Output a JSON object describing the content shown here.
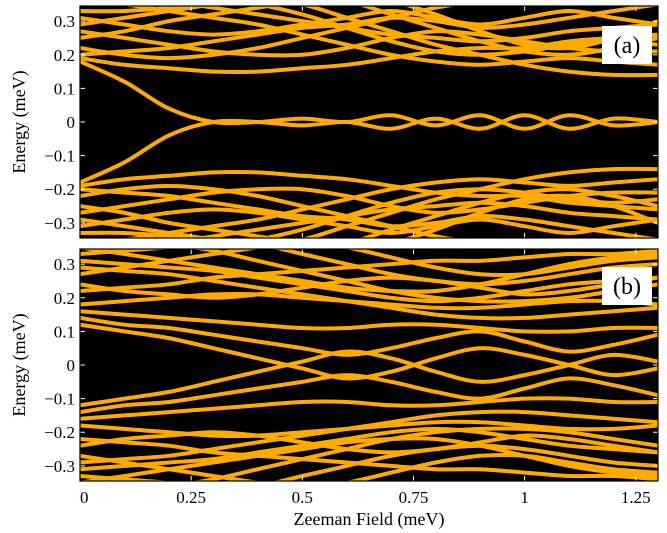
{
  "chart_data": [
    {
      "id": "a",
      "type": "line",
      "panel_label": "(a)",
      "xlabel": "",
      "ylabel": "Energy (meV)",
      "xlim": [
        0,
        1.3
      ],
      "ylim": [
        -0.345,
        0.345
      ],
      "yticks": [
        -0.3,
        -0.2,
        -0.1,
        0,
        0.1,
        0.2,
        0.3
      ],
      "ytick_labels": [
        "−0.3",
        "−0.2",
        "−0.1",
        "0",
        "0.1",
        "0.2",
        "0.3"
      ],
      "background": "#000000",
      "line_color": "#FFAA00",
      "x": [
        0,
        0.1,
        0.2,
        0.3,
        0.4,
        0.5,
        0.6,
        0.7,
        0.8,
        0.9,
        1.0,
        1.1,
        1.2,
        1.3
      ],
      "series": [
        {
          "values": [
            0.18,
            0.12,
            0.04,
            0.0,
            0.0,
            0.01,
            0.0,
            0.02,
            -0.01,
            0.02,
            -0.02,
            0.02,
            -0.01,
            0.0
          ]
        },
        {
          "values": [
            -0.18,
            -0.12,
            -0.04,
            0.0,
            0.0,
            -0.01,
            0.0,
            -0.02,
            0.01,
            -0.02,
            0.02,
            -0.02,
            0.01,
            0.0
          ]
        },
        {
          "values": [
            0.19,
            0.17,
            0.16,
            0.15,
            0.15,
            0.16,
            0.17,
            0.19,
            0.21,
            0.22,
            0.22,
            0.24,
            0.25,
            0.26
          ]
        },
        {
          "values": [
            0.2,
            0.21,
            0.22,
            0.24,
            0.26,
            0.28,
            0.29,
            0.31,
            0.3,
            0.28,
            0.29,
            0.31,
            0.33,
            0.35
          ]
        },
        {
          "values": [
            0.22,
            0.2,
            0.19,
            0.2,
            0.22,
            0.25,
            0.28,
            0.31,
            0.34,
            0.36,
            0.37,
            0.37,
            0.36,
            0.36
          ]
        },
        {
          "values": [
            0.25,
            0.27,
            0.3,
            0.32,
            0.34,
            0.36,
            0.37,
            0.37,
            0.37,
            0.37,
            0.37,
            0.37,
            0.37,
            0.37
          ]
        },
        {
          "values": [
            0.27,
            0.25,
            0.23,
            0.21,
            0.2,
            0.2,
            0.22,
            0.25,
            0.27,
            0.26,
            0.24,
            0.22,
            0.21,
            0.21
          ]
        },
        {
          "values": [
            0.29,
            0.31,
            0.33,
            0.35,
            0.37,
            0.37,
            0.37,
            0.37,
            0.37,
            0.37,
            0.37,
            0.37,
            0.37,
            0.37
          ]
        },
        {
          "values": [
            0.31,
            0.29,
            0.27,
            0.26,
            0.27,
            0.29,
            0.31,
            0.33,
            0.31,
            0.29,
            0.31,
            0.33,
            0.31,
            0.29
          ]
        },
        {
          "values": [
            0.33,
            0.33,
            0.34,
            0.36,
            0.37,
            0.37,
            0.37,
            0.37,
            0.37,
            0.37,
            0.37,
            0.37,
            0.37,
            0.37
          ]
        },
        {
          "values": [
            0.36,
            0.35,
            0.33,
            0.31,
            0.29,
            0.26,
            0.23,
            0.2,
            0.18,
            0.17,
            0.18,
            0.19,
            0.18,
            0.17
          ]
        },
        {
          "values": [
            0.37,
            0.37,
            0.36,
            0.34,
            0.32,
            0.3,
            0.28,
            0.26,
            0.25,
            0.24,
            0.25,
            0.27,
            0.28,
            0.29
          ]
        },
        {
          "values": [
            0.37,
            0.37,
            0.37,
            0.37,
            0.35,
            0.32,
            0.28,
            0.24,
            0.21,
            0.2,
            0.21,
            0.23,
            0.24,
            0.23
          ]
        },
        {
          "values": [
            0.37,
            0.37,
            0.37,
            0.37,
            0.37,
            0.35,
            0.31,
            0.27,
            0.23,
            0.2,
            0.17,
            0.15,
            0.14,
            0.14
          ]
        },
        {
          "values": [
            0.37,
            0.37,
            0.37,
            0.37,
            0.37,
            0.37,
            0.36,
            0.32,
            0.28,
            0.24,
            0.21,
            0.2,
            0.22,
            0.25
          ]
        },
        {
          "values": [
            0.37,
            0.37,
            0.37,
            0.37,
            0.37,
            0.37,
            0.37,
            0.36,
            0.32,
            0.27,
            0.23,
            0.22,
            0.25,
            0.3
          ]
        },
        {
          "values": [
            -0.19,
            -0.17,
            -0.16,
            -0.15,
            -0.15,
            -0.16,
            -0.17,
            -0.19,
            -0.21,
            -0.22,
            -0.22,
            -0.24,
            -0.25,
            -0.26
          ]
        },
        {
          "values": [
            -0.2,
            -0.21,
            -0.22,
            -0.24,
            -0.26,
            -0.28,
            -0.29,
            -0.31,
            -0.3,
            -0.28,
            -0.29,
            -0.31,
            -0.33,
            -0.35
          ]
        },
        {
          "values": [
            -0.22,
            -0.2,
            -0.19,
            -0.2,
            -0.22,
            -0.25,
            -0.28,
            -0.31,
            -0.34,
            -0.36,
            -0.37,
            -0.37,
            -0.36,
            -0.36
          ]
        },
        {
          "values": [
            -0.25,
            -0.27,
            -0.3,
            -0.32,
            -0.34,
            -0.36,
            -0.37,
            -0.37,
            -0.37,
            -0.37,
            -0.37,
            -0.37,
            -0.37,
            -0.37
          ]
        },
        {
          "values": [
            -0.27,
            -0.25,
            -0.23,
            -0.21,
            -0.2,
            -0.2,
            -0.22,
            -0.25,
            -0.27,
            -0.26,
            -0.24,
            -0.22,
            -0.21,
            -0.21
          ]
        },
        {
          "values": [
            -0.29,
            -0.31,
            -0.33,
            -0.35,
            -0.37,
            -0.37,
            -0.37,
            -0.37,
            -0.37,
            -0.37,
            -0.37,
            -0.37,
            -0.37,
            -0.37
          ]
        },
        {
          "values": [
            -0.31,
            -0.29,
            -0.27,
            -0.26,
            -0.27,
            -0.29,
            -0.31,
            -0.33,
            -0.31,
            -0.29,
            -0.31,
            -0.33,
            -0.31,
            -0.29
          ]
        },
        {
          "values": [
            -0.33,
            -0.33,
            -0.34,
            -0.36,
            -0.37,
            -0.37,
            -0.37,
            -0.37,
            -0.37,
            -0.37,
            -0.37,
            -0.37,
            -0.37,
            -0.37
          ]
        },
        {
          "values": [
            -0.36,
            -0.35,
            -0.33,
            -0.31,
            -0.29,
            -0.26,
            -0.23,
            -0.2,
            -0.18,
            -0.17,
            -0.18,
            -0.19,
            -0.18,
            -0.17
          ]
        },
        {
          "values": [
            -0.37,
            -0.37,
            -0.36,
            -0.34,
            -0.32,
            -0.3,
            -0.28,
            -0.26,
            -0.25,
            -0.24,
            -0.25,
            -0.27,
            -0.28,
            -0.29
          ]
        },
        {
          "values": [
            -0.37,
            -0.37,
            -0.37,
            -0.37,
            -0.35,
            -0.32,
            -0.28,
            -0.24,
            -0.21,
            -0.2,
            -0.21,
            -0.23,
            -0.24,
            -0.23
          ]
        },
        {
          "values": [
            -0.37,
            -0.37,
            -0.37,
            -0.37,
            -0.37,
            -0.35,
            -0.31,
            -0.27,
            -0.23,
            -0.2,
            -0.17,
            -0.15,
            -0.14,
            -0.14
          ]
        },
        {
          "values": [
            -0.37,
            -0.37,
            -0.37,
            -0.37,
            -0.37,
            -0.37,
            -0.36,
            -0.32,
            -0.28,
            -0.24,
            -0.21,
            -0.2,
            -0.22,
            -0.25
          ]
        },
        {
          "values": [
            -0.37,
            -0.37,
            -0.37,
            -0.37,
            -0.37,
            -0.37,
            -0.37,
            -0.36,
            -0.32,
            -0.27,
            -0.23,
            -0.22,
            -0.25,
            -0.3
          ]
        }
      ]
    },
    {
      "id": "b",
      "type": "line",
      "panel_label": "(b)",
      "xlabel": "Zeeman Field (meV)",
      "ylabel": "Energy (meV)",
      "xlim": [
        0,
        1.3
      ],
      "ylim": [
        -0.345,
        0.345
      ],
      "xticks": [
        0,
        0.25,
        0.5,
        0.75,
        1,
        1.25
      ],
      "xtick_labels": [
        "0",
        "0.25",
        "0.5",
        "0.75",
        "1",
        "1.25"
      ],
      "yticks": [
        -0.3,
        -0.2,
        -0.1,
        0,
        0.1,
        0.2,
        0.3
      ],
      "ytick_labels": [
        "−0.3",
        "−0.2",
        "−0.1",
        "0",
        "0.1",
        "0.2",
        "0.3"
      ],
      "background": "#000000",
      "line_color": "#FFAA00",
      "x": [
        0,
        0.1,
        0.2,
        0.3,
        0.4,
        0.5,
        0.6,
        0.7,
        0.8,
        0.9,
        1.0,
        1.1,
        1.2,
        1.3
      ],
      "series": [
        {
          "values": [
            0.12,
            0.1,
            0.08,
            0.05,
            0.02,
            -0.01,
            -0.04,
            -0.02,
            0.02,
            0.05,
            0.03,
            0.0,
            -0.03,
            -0.01
          ]
        },
        {
          "values": [
            -0.12,
            -0.1,
            -0.08,
            -0.05,
            -0.02,
            0.01,
            0.04,
            0.02,
            -0.02,
            -0.05,
            -0.03,
            0.0,
            0.03,
            0.01
          ]
        },
        {
          "values": [
            0.14,
            0.12,
            0.11,
            0.09,
            0.07,
            0.05,
            0.03,
            0.05,
            0.08,
            0.1,
            0.07,
            0.04,
            0.06,
            0.09
          ]
        },
        {
          "values": [
            -0.14,
            -0.12,
            -0.11,
            -0.09,
            -0.07,
            -0.05,
            -0.03,
            -0.05,
            -0.08,
            -0.1,
            -0.07,
            -0.04,
            -0.06,
            -0.09
          ]
        },
        {
          "values": [
            0.16,
            0.15,
            0.14,
            0.13,
            0.12,
            0.11,
            0.11,
            0.12,
            0.12,
            0.11,
            0.1,
            0.1,
            0.11,
            0.11
          ]
        },
        {
          "values": [
            0.18,
            0.19,
            0.2,
            0.21,
            0.21,
            0.2,
            0.19,
            0.18,
            0.17,
            0.17,
            0.18,
            0.19,
            0.19,
            0.18
          ]
        },
        {
          "values": [
            0.22,
            0.23,
            0.24,
            0.26,
            0.27,
            0.28,
            0.29,
            0.3,
            0.31,
            0.31,
            0.32,
            0.33,
            0.33,
            0.34
          ]
        },
        {
          "values": [
            0.24,
            0.22,
            0.21,
            0.2,
            0.21,
            0.23,
            0.25,
            0.26,
            0.25,
            0.23,
            0.21,
            0.22,
            0.24,
            0.26
          ]
        },
        {
          "values": [
            0.27,
            0.29,
            0.31,
            0.33,
            0.35,
            0.37,
            0.37,
            0.37,
            0.37,
            0.37,
            0.37,
            0.37,
            0.37,
            0.37
          ]
        },
        {
          "values": [
            0.29,
            0.28,
            0.27,
            0.25,
            0.23,
            0.21,
            0.19,
            0.17,
            0.15,
            0.14,
            0.14,
            0.15,
            0.16,
            0.17
          ]
        },
        {
          "values": [
            0.31,
            0.3,
            0.29,
            0.28,
            0.26,
            0.24,
            0.22,
            0.2,
            0.19,
            0.2,
            0.22,
            0.24,
            0.25,
            0.26
          ]
        },
        {
          "values": [
            0.33,
            0.34,
            0.35,
            0.36,
            0.37,
            0.37,
            0.37,
            0.37,
            0.37,
            0.37,
            0.37,
            0.37,
            0.37,
            0.37
          ]
        },
        {
          "values": [
            0.35,
            0.33,
            0.31,
            0.29,
            0.27,
            0.25,
            0.23,
            0.22,
            0.22,
            0.24,
            0.27,
            0.3,
            0.32,
            0.33
          ]
        },
        {
          "values": [
            0.37,
            0.37,
            0.36,
            0.34,
            0.31,
            0.28,
            0.25,
            0.22,
            0.2,
            0.19,
            0.19,
            0.2,
            0.22,
            0.24
          ]
        },
        {
          "values": [
            0.37,
            0.37,
            0.37,
            0.37,
            0.36,
            0.33,
            0.3,
            0.27,
            0.25,
            0.24,
            0.25,
            0.27,
            0.29,
            0.3
          ]
        },
        {
          "values": [
            0.37,
            0.37,
            0.37,
            0.37,
            0.37,
            0.37,
            0.35,
            0.32,
            0.29,
            0.27,
            0.27,
            0.29,
            0.31,
            0.32
          ]
        },
        {
          "values": [
            -0.16,
            -0.15,
            -0.14,
            -0.13,
            -0.12,
            -0.11,
            -0.11,
            -0.12,
            -0.12,
            -0.11,
            -0.1,
            -0.1,
            -0.11,
            -0.11
          ]
        },
        {
          "values": [
            -0.18,
            -0.19,
            -0.2,
            -0.21,
            -0.21,
            -0.2,
            -0.19,
            -0.18,
            -0.17,
            -0.17,
            -0.18,
            -0.19,
            -0.19,
            -0.18
          ]
        },
        {
          "values": [
            -0.22,
            -0.23,
            -0.24,
            -0.26,
            -0.27,
            -0.28,
            -0.29,
            -0.3,
            -0.31,
            -0.31,
            -0.32,
            -0.33,
            -0.33,
            -0.34
          ]
        },
        {
          "values": [
            -0.24,
            -0.22,
            -0.21,
            -0.2,
            -0.21,
            -0.23,
            -0.25,
            -0.26,
            -0.25,
            -0.23,
            -0.21,
            -0.22,
            -0.24,
            -0.26
          ]
        },
        {
          "values": [
            -0.27,
            -0.29,
            -0.31,
            -0.33,
            -0.35,
            -0.37,
            -0.37,
            -0.37,
            -0.37,
            -0.37,
            -0.37,
            -0.37,
            -0.37,
            -0.37
          ]
        },
        {
          "values": [
            -0.29,
            -0.28,
            -0.27,
            -0.25,
            -0.23,
            -0.21,
            -0.19,
            -0.17,
            -0.15,
            -0.14,
            -0.14,
            -0.15,
            -0.16,
            -0.17
          ]
        },
        {
          "values": [
            -0.31,
            -0.3,
            -0.29,
            -0.28,
            -0.26,
            -0.24,
            -0.22,
            -0.2,
            -0.19,
            -0.2,
            -0.22,
            -0.24,
            -0.25,
            -0.26
          ]
        },
        {
          "values": [
            -0.33,
            -0.34,
            -0.35,
            -0.36,
            -0.37,
            -0.37,
            -0.37,
            -0.37,
            -0.37,
            -0.37,
            -0.37,
            -0.37,
            -0.37,
            -0.37
          ]
        },
        {
          "values": [
            -0.35,
            -0.33,
            -0.31,
            -0.29,
            -0.27,
            -0.25,
            -0.23,
            -0.22,
            -0.22,
            -0.24,
            -0.27,
            -0.3,
            -0.32,
            -0.33
          ]
        },
        {
          "values": [
            -0.37,
            -0.37,
            -0.36,
            -0.34,
            -0.31,
            -0.28,
            -0.25,
            -0.22,
            -0.2,
            -0.19,
            -0.19,
            -0.2,
            -0.22,
            -0.24
          ]
        },
        {
          "values": [
            -0.37,
            -0.37,
            -0.37,
            -0.37,
            -0.36,
            -0.33,
            -0.3,
            -0.27,
            -0.25,
            -0.24,
            -0.25,
            -0.27,
            -0.29,
            -0.3
          ]
        },
        {
          "values": [
            -0.37,
            -0.37,
            -0.37,
            -0.37,
            -0.37,
            -0.37,
            -0.35,
            -0.32,
            -0.29,
            -0.27,
            -0.27,
            -0.29,
            -0.31,
            -0.32
          ]
        }
      ]
    }
  ]
}
